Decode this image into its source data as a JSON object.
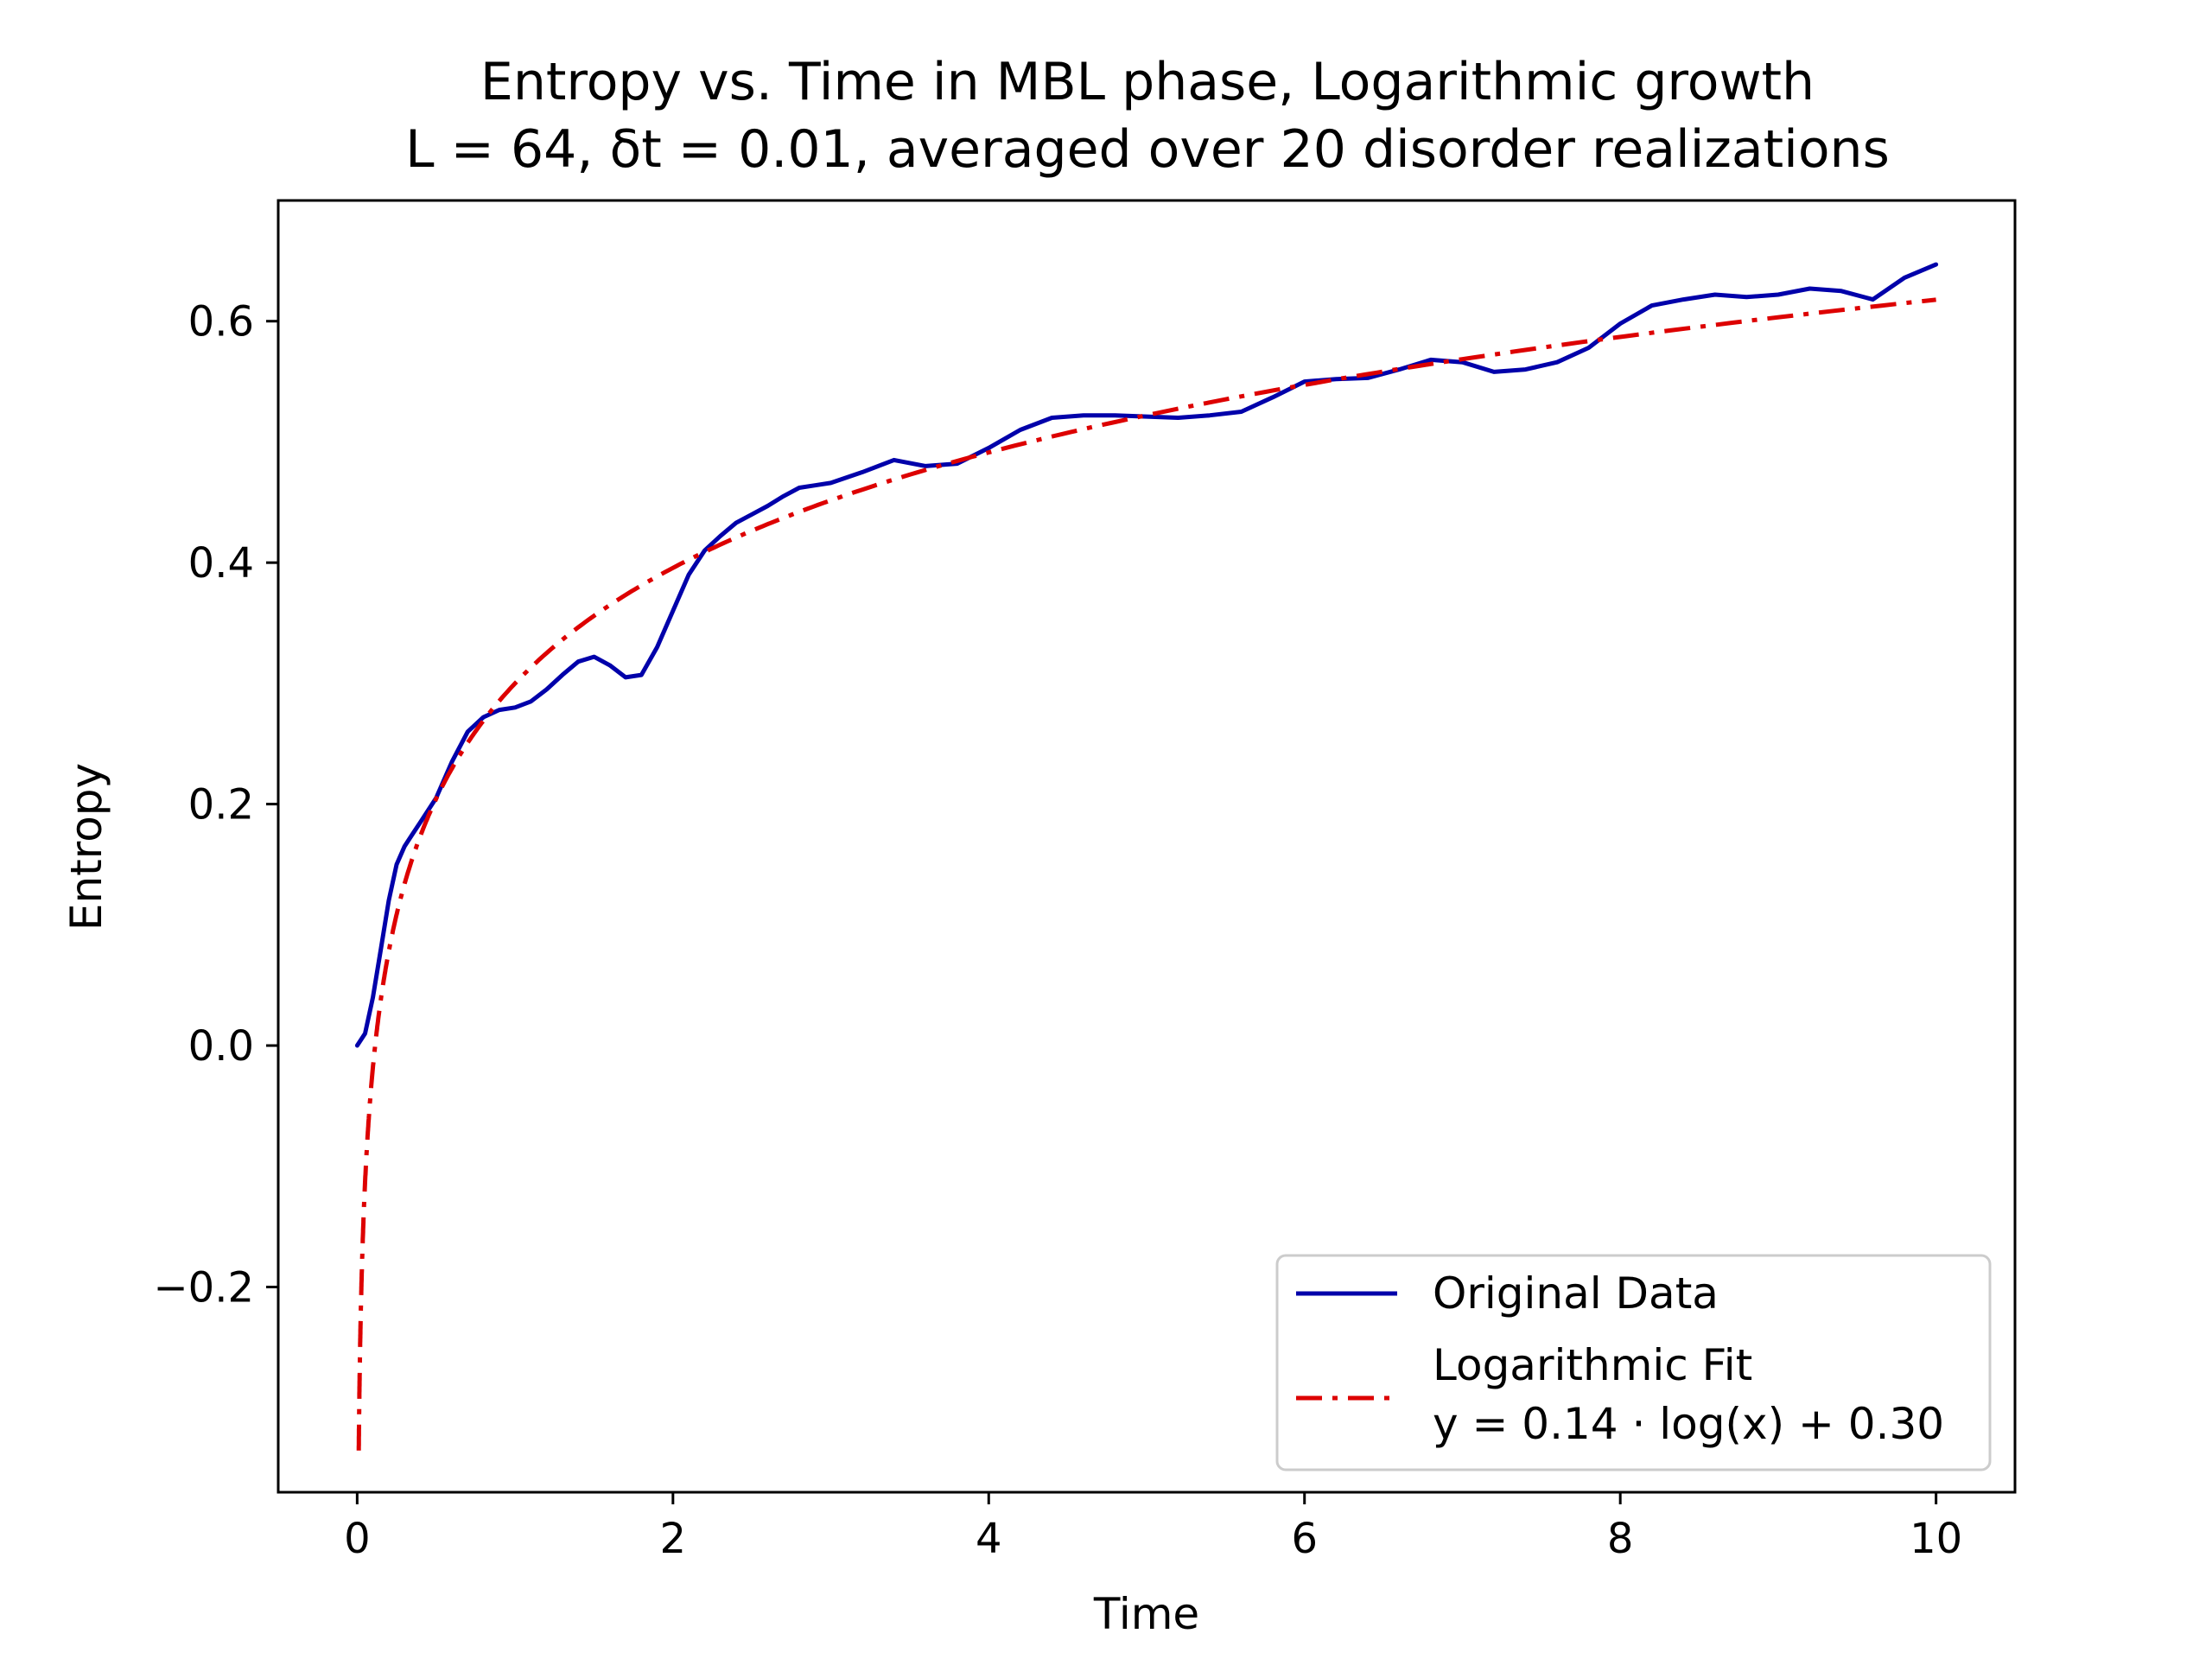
{
  "chart_data": {
    "type": "line",
    "title": "Entropy vs. Time in MBL phase, Logarithmic growth",
    "subtitle": "L = 64, δt = 0.01, averaged over 20 disorder realizations",
    "xlabel": "Time",
    "ylabel": "Entropy",
    "xlim": [
      -0.5,
      10.5
    ],
    "ylim": [
      -0.37,
      0.7
    ],
    "xticks": [
      0,
      2,
      4,
      6,
      8,
      10
    ],
    "xtick_labels": [
      "0",
      "2",
      "4",
      "6",
      "8",
      "10"
    ],
    "yticks": [
      -0.2,
      0.0,
      0.2,
      0.4,
      0.6
    ],
    "ytick_labels": [
      "−0.2",
      "0.0",
      "0.2",
      "0.4",
      "0.6"
    ],
    "grid": false,
    "legend_position": "lower right",
    "series": [
      {
        "name": "Original Data",
        "color": "#0000aa",
        "style": "solid",
        "x": [
          0.0,
          0.05,
          0.1,
          0.15,
          0.2,
          0.25,
          0.3,
          0.35,
          0.4,
          0.5,
          0.6,
          0.7,
          0.8,
          0.9,
          1.0,
          1.1,
          1.2,
          1.3,
          1.4,
          1.5,
          1.6,
          1.7,
          1.8,
          1.9,
          2.0,
          2.1,
          2.2,
          2.3,
          2.4,
          2.5,
          2.6,
          2.7,
          2.8,
          2.9,
          3.0,
          3.2,
          3.4,
          3.6,
          3.8,
          4.0,
          4.2,
          4.4,
          4.6,
          4.8,
          5.0,
          5.2,
          5.4,
          5.6,
          5.8,
          6.0,
          6.2,
          6.4,
          6.6,
          6.8,
          7.0,
          7.2,
          7.4,
          7.6,
          7.8,
          8.0,
          8.2,
          8.4,
          8.6,
          8.8,
          9.0,
          9.2,
          9.4,
          9.6,
          9.8,
          10.0
        ],
        "values": [
          0.0,
          0.01,
          0.04,
          0.08,
          0.12,
          0.15,
          0.165,
          0.175,
          0.185,
          0.205,
          0.235,
          0.26,
          0.272,
          0.278,
          0.28,
          0.285,
          0.295,
          0.307,
          0.318,
          0.322,
          0.315,
          0.305,
          0.307,
          0.33,
          0.36,
          0.39,
          0.41,
          0.422,
          0.433,
          0.44,
          0.447,
          0.455,
          0.462,
          0.464,
          0.466,
          0.475,
          0.485,
          0.48,
          0.482,
          0.495,
          0.51,
          0.52,
          0.522,
          0.522,
          0.521,
          0.52,
          0.522,
          0.525,
          0.537,
          0.55,
          0.552,
          0.553,
          0.56,
          0.568,
          0.566,
          0.558,
          0.56,
          0.566,
          0.578,
          0.598,
          0.613,
          0.618,
          0.622,
          0.62,
          0.622,
          0.627,
          0.625,
          0.618,
          0.636,
          0.647
        ]
      },
      {
        "name": "Logarithmic Fit",
        "name_line2": "y = 0.14 · log(x) + 0.30",
        "color": "#dd0000",
        "style": "dashdot",
        "fit": {
          "a": 0.138,
          "b": 0.3,
          "x_start": 0.01,
          "x_end": 10.0
        }
      }
    ]
  }
}
